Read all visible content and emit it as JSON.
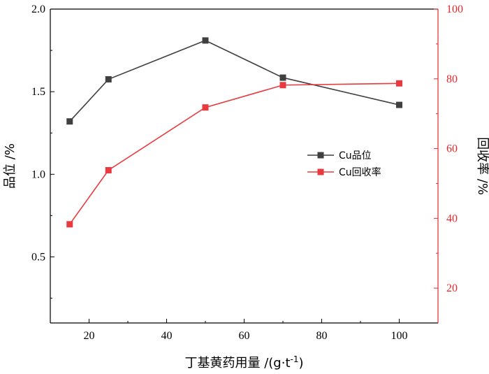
{
  "chart_data": {
    "type": "line",
    "x": [
      15,
      25,
      50,
      70,
      100
    ],
    "xlim": [
      10,
      110
    ],
    "xticks": [
      20,
      40,
      60,
      80,
      100
    ],
    "xlabel": "丁基黄药用量 /(g·t",
    "xlabel_sup": "-1",
    "xlabel_close": ")",
    "y_left": {
      "label": "品位 /%",
      "lim": [
        0.1,
        2.0
      ],
      "ticks": [
        0.5,
        1.0,
        1.5,
        2.0
      ],
      "tick_labels": [
        "0.5",
        "1.0",
        "1.5",
        "2.0"
      ],
      "color": "#000000"
    },
    "y_right": {
      "label": "回收率 /%",
      "lim": [
        10,
        100
      ],
      "ticks": [
        20,
        40,
        60,
        80,
        100
      ],
      "tick_labels": [
        "20",
        "40",
        "60",
        "80",
        "100"
      ],
      "color": "#e8262b"
    },
    "series": [
      {
        "name": "Cu品位",
        "axis": "left",
        "color": "#404040",
        "values": [
          1.32,
          1.575,
          1.81,
          1.585,
          1.42
        ]
      },
      {
        "name": "Cu回收率",
        "axis": "right",
        "color": "#e83a3f",
        "values": [
          38.3,
          53.8,
          71.8,
          78.2,
          78.7
        ]
      }
    ],
    "legend": "center-right",
    "grid": false
  }
}
